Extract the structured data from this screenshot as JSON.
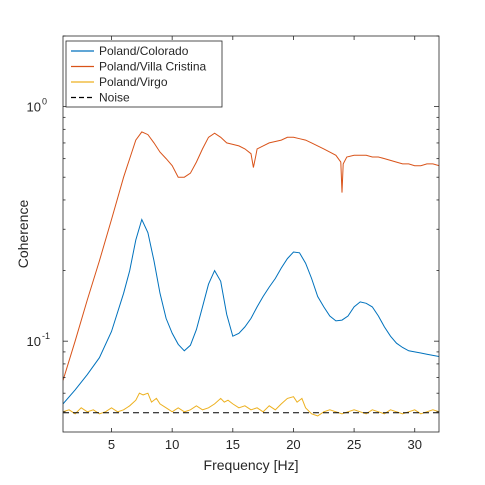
{
  "chart_data": {
    "type": "line",
    "title": "",
    "xlabel": "Frequency [Hz]",
    "ylabel": "Coherence",
    "xlim": [
      1,
      32
    ],
    "ylim": [
      0.041,
      2.0
    ],
    "yscale": "log",
    "grid": false,
    "legend_position": "top-left",
    "x_ticks": [
      5,
      10,
      15,
      20,
      25,
      30
    ],
    "x_tick_labels": [
      "5",
      "10",
      "15",
      "20",
      "25",
      "30"
    ],
    "y_tick_labels": [
      {
        "value": 1.0,
        "base": "10",
        "exp": "0"
      },
      {
        "value": 0.1,
        "base": "10",
        "exp": "-1"
      }
    ],
    "series": [
      {
        "name": "Poland/Colorado",
        "color": "#0072BD",
        "style": "solid",
        "x": [
          1.0,
          2.0,
          3.0,
          4.0,
          5.0,
          6.0,
          6.5,
          7.0,
          7.5,
          8.0,
          8.5,
          9.0,
          9.5,
          10.0,
          10.5,
          11.0,
          11.5,
          12.0,
          12.5,
          13.0,
          13.5,
          14.0,
          14.5,
          15.0,
          15.5,
          16.0,
          16.5,
          17.0,
          17.5,
          18.0,
          18.5,
          19.0,
          19.5,
          20.0,
          20.5,
          21.0,
          21.5,
          22.0,
          22.5,
          23.0,
          23.5,
          24.0,
          24.5,
          25.0,
          25.5,
          26.0,
          26.5,
          27.0,
          27.5,
          28.0,
          28.5,
          29.0,
          29.5,
          30.0,
          30.5,
          31.0,
          31.5,
          32.0
        ],
        "values": [
          0.054,
          0.062,
          0.072,
          0.085,
          0.11,
          0.16,
          0.2,
          0.27,
          0.33,
          0.29,
          0.22,
          0.16,
          0.125,
          0.108,
          0.097,
          0.091,
          0.096,
          0.112,
          0.14,
          0.175,
          0.2,
          0.18,
          0.13,
          0.105,
          0.108,
          0.115,
          0.125,
          0.14,
          0.155,
          0.17,
          0.185,
          0.205,
          0.225,
          0.24,
          0.238,
          0.215,
          0.185,
          0.155,
          0.14,
          0.128,
          0.122,
          0.123,
          0.128,
          0.14,
          0.147,
          0.145,
          0.14,
          0.128,
          0.115,
          0.105,
          0.098,
          0.094,
          0.091,
          0.09,
          0.089,
          0.088,
          0.087,
          0.086
        ]
      },
      {
        "name": "Poland/Villa Cristina",
        "color": "#D95319",
        "style": "solid",
        "x": [
          1.0,
          2.0,
          3.0,
          4.0,
          5.0,
          6.0,
          6.5,
          7.0,
          7.5,
          8.0,
          8.5,
          9.0,
          9.5,
          10.0,
          10.5,
          11.0,
          11.5,
          12.0,
          12.5,
          13.0,
          13.5,
          14.0,
          14.5,
          15.0,
          15.5,
          16.0,
          16.5,
          16.7,
          16.9,
          17.0,
          17.5,
          18.0,
          18.5,
          19.0,
          19.5,
          20.0,
          20.5,
          21.0,
          21.5,
          22.0,
          22.5,
          23.0,
          23.5,
          23.9,
          24.0,
          24.1,
          24.4,
          25.0,
          25.5,
          26.0,
          26.5,
          27.0,
          27.5,
          28.0,
          28.5,
          29.0,
          29.5,
          30.0,
          30.5,
          31.0,
          31.5,
          32.0
        ],
        "values": [
          0.068,
          0.1,
          0.15,
          0.22,
          0.33,
          0.5,
          0.6,
          0.72,
          0.78,
          0.76,
          0.7,
          0.64,
          0.6,
          0.56,
          0.5,
          0.5,
          0.52,
          0.58,
          0.66,
          0.74,
          0.77,
          0.74,
          0.7,
          0.69,
          0.68,
          0.66,
          0.63,
          0.55,
          0.62,
          0.66,
          0.68,
          0.7,
          0.71,
          0.72,
          0.74,
          0.74,
          0.73,
          0.72,
          0.7,
          0.68,
          0.66,
          0.64,
          0.62,
          0.58,
          0.43,
          0.57,
          0.61,
          0.62,
          0.62,
          0.62,
          0.61,
          0.61,
          0.6,
          0.59,
          0.58,
          0.57,
          0.57,
          0.56,
          0.56,
          0.57,
          0.57,
          0.56
        ]
      },
      {
        "name": "Poland/Virgo",
        "color": "#EDB120",
        "style": "solid",
        "x": [
          1.0,
          1.5,
          2.0,
          2.5,
          3.0,
          3.5,
          4.0,
          4.5,
          5.0,
          5.5,
          6.0,
          6.5,
          7.0,
          7.3,
          7.6,
          8.0,
          8.3,
          8.7,
          9.0,
          9.5,
          10.0,
          10.5,
          11.0,
          11.5,
          12.0,
          12.5,
          13.0,
          13.5,
          14.0,
          14.3,
          14.6,
          15.0,
          15.5,
          16.0,
          16.5,
          17.0,
          17.5,
          18.0,
          18.5,
          19.0,
          19.5,
          20.0,
          20.3,
          20.7,
          21.0,
          21.5,
          22.0,
          22.5,
          23.0,
          23.5,
          24.0,
          24.5,
          25.0,
          25.5,
          26.0,
          26.5,
          27.0,
          27.5,
          28.0,
          28.5,
          29.0,
          29.5,
          30.0,
          30.5,
          31.0,
          31.5,
          32.0
        ],
        "values": [
          0.05,
          0.051,
          0.049,
          0.052,
          0.05,
          0.051,
          0.049,
          0.05,
          0.052,
          0.05,
          0.051,
          0.053,
          0.056,
          0.06,
          0.059,
          0.06,
          0.055,
          0.057,
          0.054,
          0.052,
          0.05,
          0.052,
          0.05,
          0.051,
          0.053,
          0.051,
          0.052,
          0.054,
          0.057,
          0.055,
          0.056,
          0.054,
          0.052,
          0.053,
          0.051,
          0.052,
          0.05,
          0.053,
          0.051,
          0.054,
          0.057,
          0.058,
          0.055,
          0.057,
          0.052,
          0.049,
          0.048,
          0.05,
          0.051,
          0.05,
          0.049,
          0.05,
          0.051,
          0.05,
          0.049,
          0.051,
          0.05,
          0.049,
          0.051,
          0.05,
          0.049,
          0.05,
          0.051,
          0.049,
          0.05,
          0.051,
          0.05
        ]
      },
      {
        "name": "Noise",
        "color": "#000000",
        "style": "dashed",
        "x": [
          1,
          32
        ],
        "values": [
          0.0495,
          0.0495
        ]
      }
    ]
  }
}
